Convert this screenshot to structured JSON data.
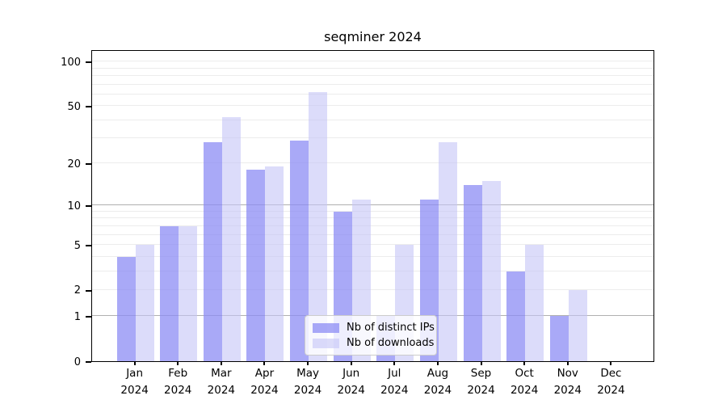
{
  "title": "seqminer 2024",
  "colors": {
    "ips": "rgba(140,140,244,0.75)",
    "downloads": "rgba(197,197,247,0.6)",
    "grid_minor": "#ececec",
    "grid_major": "#b0b0b0",
    "axis": "#000000",
    "legend_border": "#cccccc"
  },
  "legend": {
    "items": [
      {
        "label": "Nb of distinct IPs",
        "color_key": "ips"
      },
      {
        "label": "Nb of downloads",
        "color_key": "downloads"
      }
    ]
  },
  "y_axis": {
    "ticks": [
      {
        "label": "100",
        "value": 100
      },
      {
        "label": "50",
        "value": 50
      },
      {
        "label": "20",
        "value": 20
      },
      {
        "label": "10",
        "value": 10
      },
      {
        "label": "5",
        "value": 5
      },
      {
        "label": "2",
        "value": 2
      },
      {
        "label": "1",
        "value": 1
      },
      {
        "label": "0",
        "value": 0
      }
    ],
    "gridlines_minor": [
      2,
      3,
      4,
      5,
      6,
      7,
      8,
      9,
      20,
      30,
      40,
      50,
      60,
      70,
      80,
      90,
      100
    ],
    "gridlines_major": [
      1,
      10
    ]
  },
  "x_axis": {
    "categories": [
      {
        "month": "Jan",
        "year": "2024"
      },
      {
        "month": "Feb",
        "year": "2024"
      },
      {
        "month": "Mar",
        "year": "2024"
      },
      {
        "month": "Apr",
        "year": "2024"
      },
      {
        "month": "May",
        "year": "2024"
      },
      {
        "month": "Jun",
        "year": "2024"
      },
      {
        "month": "Jul",
        "year": "2024"
      },
      {
        "month": "Aug",
        "year": "2024"
      },
      {
        "month": "Sep",
        "year": "2024"
      },
      {
        "month": "Oct",
        "year": "2024"
      },
      {
        "month": "Nov",
        "year": "2024"
      },
      {
        "month": "Dec",
        "year": "2024"
      }
    ]
  },
  "chart_data": {
    "type": "bar",
    "title": "seqminer 2024",
    "xlabel": "",
    "ylabel": "",
    "scale": "log1p",
    "ylim": [
      0,
      100
    ],
    "grid": true,
    "legend_position": "lower center-right inside plot",
    "categories": [
      "Jan 2024",
      "Feb 2024",
      "Mar 2024",
      "Apr 2024",
      "May 2024",
      "Jun 2024",
      "Jul 2024",
      "Aug 2024",
      "Sep 2024",
      "Oct 2024",
      "Nov 2024",
      "Dec 2024"
    ],
    "series": [
      {
        "name": "Nb of distinct IPs",
        "values": [
          4,
          7,
          28,
          18,
          29,
          9,
          1,
          11,
          14,
          3,
          1,
          0
        ]
      },
      {
        "name": "Nb of downloads",
        "values": [
          5,
          7,
          42,
          19,
          62,
          11,
          5,
          28,
          15,
          5,
          2,
          0
        ]
      }
    ]
  }
}
